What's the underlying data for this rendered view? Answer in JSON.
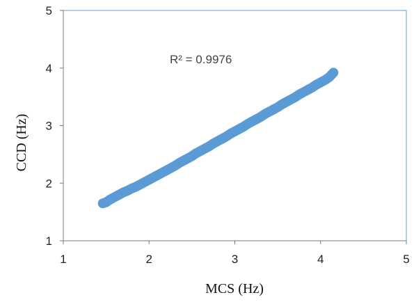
{
  "chart_data": {
    "type": "scatter",
    "xlabel": "MCS (Hz)",
    "ylabel": "CCD (Hz)",
    "xlim": [
      1,
      5
    ],
    "ylim": [
      1,
      5
    ],
    "x_ticks": [
      "1",
      "2",
      "3",
      "4",
      "5"
    ],
    "y_ticks": [
      "1",
      "2",
      "3",
      "4",
      "5"
    ],
    "grid": false,
    "legend": "none",
    "annotations": [
      {
        "text": "R² = 0.9976"
      }
    ],
    "colors": {
      "points": "#5B9BD5",
      "axes": "#7A7A7A",
      "frame": "#5B9BD5"
    },
    "series": [
      {
        "x": [
          1.46,
          1.5,
          1.55,
          1.6,
          1.65,
          1.7,
          1.75,
          1.8,
          1.85,
          1.9,
          1.95,
          2.0,
          2.05,
          2.1,
          2.15,
          2.2,
          2.25,
          2.3,
          2.35,
          2.4,
          2.45,
          2.5,
          2.55,
          2.6,
          2.65,
          2.7,
          2.75,
          2.8,
          2.85,
          2.9,
          2.95,
          3.0,
          3.05,
          3.1,
          3.15,
          3.2,
          3.25,
          3.3,
          3.35,
          3.4,
          3.45,
          3.5,
          3.55,
          3.6,
          3.65,
          3.7,
          3.75,
          3.8,
          3.85,
          3.9,
          3.95,
          4.0,
          4.05,
          4.1,
          4.15
        ],
        "y": [
          1.65,
          1.67,
          1.72,
          1.76,
          1.8,
          1.84,
          1.87,
          1.91,
          1.94,
          1.98,
          2.02,
          2.06,
          2.1,
          2.14,
          2.18,
          2.22,
          2.26,
          2.3,
          2.35,
          2.39,
          2.43,
          2.47,
          2.52,
          2.56,
          2.6,
          2.64,
          2.69,
          2.73,
          2.77,
          2.81,
          2.86,
          2.9,
          2.94,
          2.98,
          3.03,
          3.07,
          3.11,
          3.15,
          3.2,
          3.24,
          3.28,
          3.32,
          3.37,
          3.41,
          3.45,
          3.49,
          3.54,
          3.58,
          3.62,
          3.66,
          3.71,
          3.75,
          3.79,
          3.84,
          3.92
        ]
      }
    ]
  }
}
